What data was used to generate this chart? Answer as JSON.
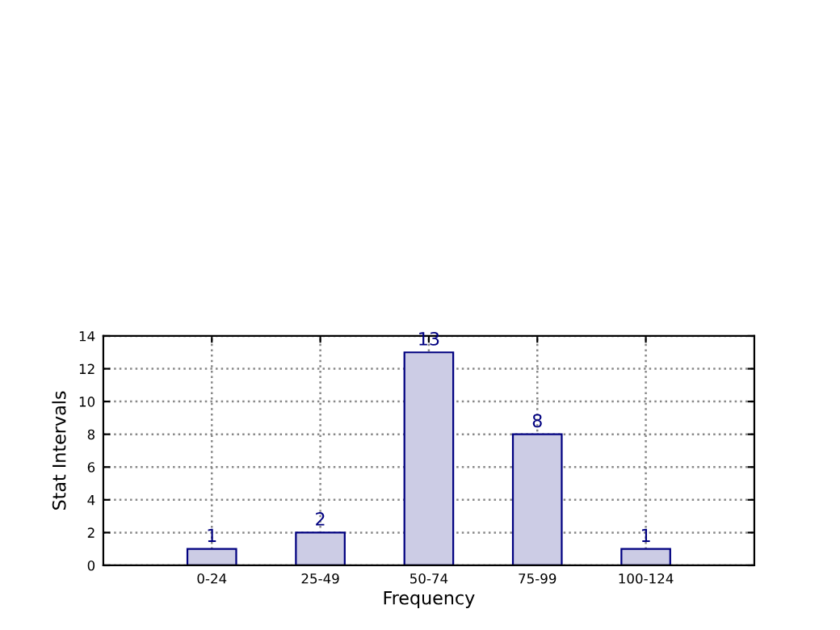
{
  "chart_data": {
    "type": "bar",
    "xlabel": "Frequency",
    "ylabel": "Stat Intervals",
    "categories": [
      "0-24",
      "25-49",
      "50-74",
      "75-99",
      "100-124"
    ],
    "values": [
      1,
      2,
      13,
      8,
      1
    ],
    "color": "#cccce5",
    "ylim": [
      0,
      14
    ],
    "yticks": [
      0,
      2,
      4,
      6,
      8,
      10,
      12,
      14
    ],
    "grid": true,
    "data_labels": true
  }
}
